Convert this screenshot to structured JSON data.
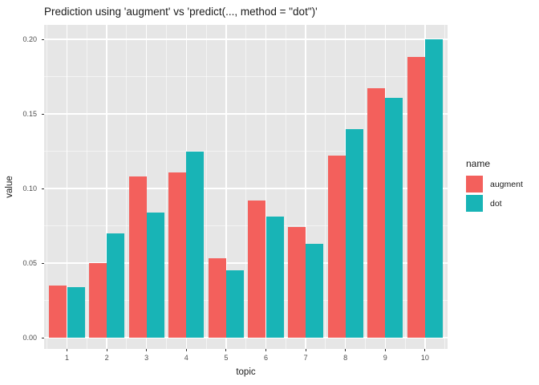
{
  "title": "Prediction using 'augment' vs 'predict(..., method = \"dot\")'",
  "axes": {
    "x_label": "topic",
    "y_label": "value",
    "x_ticks": [
      "1",
      "2",
      "3",
      "4",
      "5",
      "6",
      "7",
      "8",
      "9",
      "10"
    ],
    "y_ticks": [
      "0.00",
      "0.05",
      "0.10",
      "0.15",
      "0.20"
    ]
  },
  "legend": {
    "title": "name",
    "items": [
      {
        "label": "augment",
        "color": "#F3605C"
      },
      {
        "label": "dot",
        "color": "#18B4B6"
      }
    ]
  },
  "colors": {
    "panel_bg": "#E6E6E6",
    "grid": "#FFFFFF",
    "bar_augment": "#F3605C",
    "bar_dot": "#18B4B6"
  },
  "chart_data": {
    "type": "bar",
    "title": "Prediction using 'augment' vs 'predict(..., method = \"dot\")'",
    "xlabel": "topic",
    "ylabel": "value",
    "categories": [
      1,
      2,
      3,
      4,
      5,
      6,
      7,
      8,
      9,
      10
    ],
    "series": [
      {
        "name": "augment",
        "color": "#F3605C",
        "values": [
          0.035,
          0.05,
          0.108,
          0.111,
          0.053,
          0.092,
          0.074,
          0.122,
          0.167,
          0.188
        ]
      },
      {
        "name": "dot",
        "color": "#18B4B6",
        "values": [
          0.034,
          0.07,
          0.084,
          0.125,
          0.045,
          0.081,
          0.063,
          0.14,
          0.161,
          0.2
        ]
      }
    ],
    "ylim": [
      0,
      0.21
    ],
    "y_major_ticks": [
      0,
      0.05,
      0.1,
      0.15,
      0.2
    ],
    "y_minor_ticks": [
      0.025,
      0.075,
      0.125,
      0.175
    ],
    "grid": "on",
    "legend_position": "right",
    "legend_title": "name",
    "bar_mode": "dodge"
  }
}
